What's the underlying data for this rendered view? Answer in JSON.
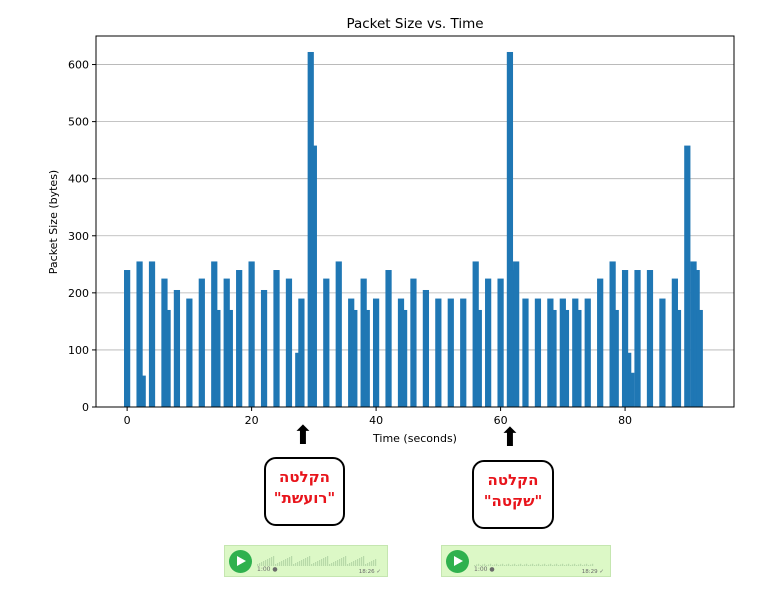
{
  "chart_data": {
    "type": "bar",
    "title": "Packet Size vs. Time",
    "xlabel": "Time (seconds)",
    "ylabel": "Packet Size (bytes)",
    "xlim": [
      -5,
      97.5
    ],
    "ylim": [
      0,
      650
    ],
    "xticks": [
      0,
      20,
      40,
      60,
      80
    ],
    "yticks": [
      0,
      100,
      200,
      300,
      400,
      500,
      600
    ],
    "grid": "y",
    "color": "#1f77b4",
    "x": [
      0,
      2,
      2.5,
      4,
      6,
      6.5,
      8,
      10,
      12,
      14,
      14.5,
      16,
      16.5,
      18,
      20,
      22,
      24,
      26,
      27.5,
      28,
      29.5,
      30,
      32,
      34,
      36,
      36.5,
      38,
      38.5,
      40,
      42,
      44,
      44.5,
      46,
      48,
      50,
      52,
      54,
      56,
      56.5,
      58,
      60,
      61.5,
      62,
      62.5,
      64,
      66,
      68,
      68.5,
      70,
      70.5,
      72,
      72.5,
      74,
      76,
      78,
      78.5,
      80,
      80.5,
      81,
      82,
      84,
      86,
      88,
      88.5,
      90,
      91,
      91.5,
      92
    ],
    "values": [
      240,
      255,
      55,
      255,
      225,
      170,
      205,
      190,
      225,
      255,
      170,
      225,
      170,
      240,
      255,
      205,
      240,
      225,
      95,
      190,
      622,
      458,
      225,
      255,
      190,
      170,
      225,
      170,
      190,
      240,
      190,
      170,
      225,
      205,
      190,
      190,
      190,
      255,
      170,
      225,
      225,
      622,
      240,
      255,
      190,
      190,
      190,
      170,
      190,
      170,
      190,
      170,
      190,
      225,
      255,
      170,
      240,
      95,
      60,
      240,
      240,
      190,
      225,
      170,
      458,
      255,
      240,
      170
    ]
  },
  "annotations": [
    {
      "arrow": "⬆",
      "line1": "הקלטה",
      "line2": "\"רועשת\""
    },
    {
      "arrow": "⬆",
      "line1": "הקלטה",
      "line2": "\"שקטה\""
    }
  ],
  "voice_messages": [
    {
      "duration": "1:00 ●",
      "timestamp": "18:26 ✓"
    },
    {
      "duration": "1:00 ●",
      "timestamp": "18:29 ✓"
    }
  ]
}
